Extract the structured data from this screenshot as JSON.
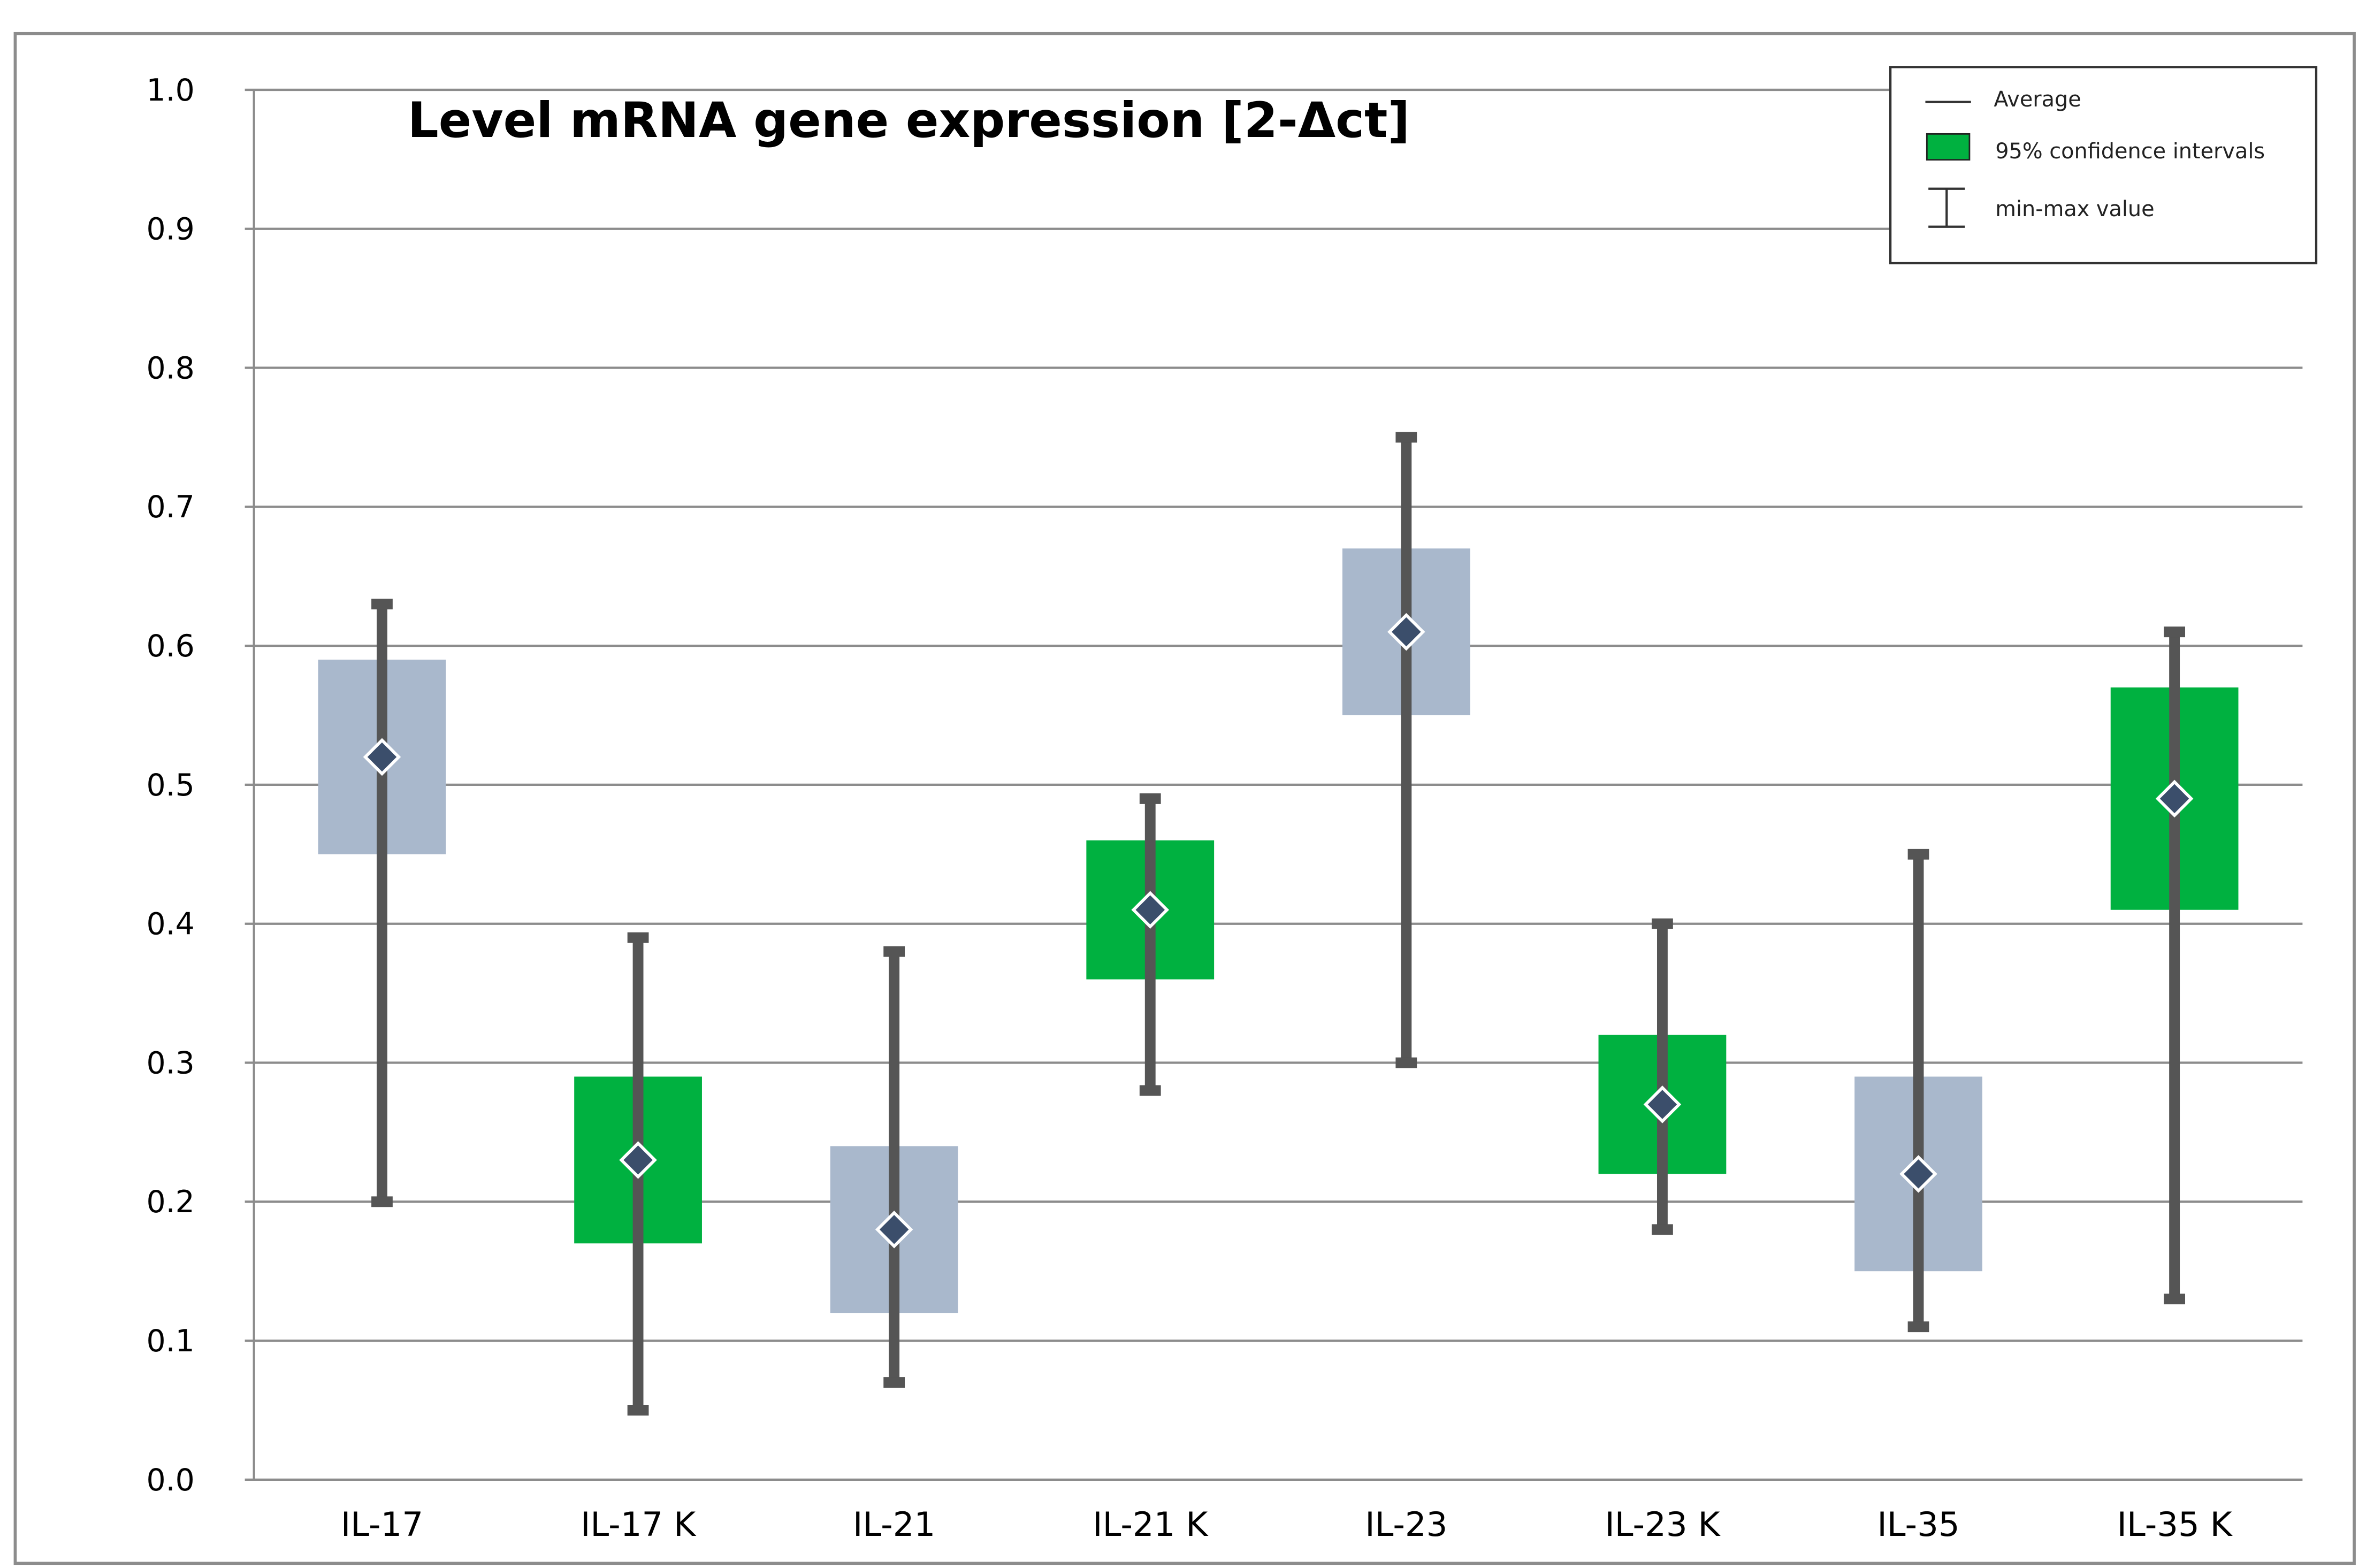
{
  "chart_data": {
    "type": "box",
    "title": "Level mRNA gene expression [2-Δct]",
    "xlabel": "",
    "ylabel": "",
    "ylim": [
      0,
      1.0
    ],
    "yticks": [
      "0.0",
      "0.1",
      "0.2",
      "0.3",
      "0.4",
      "0.5",
      "0.6",
      "0.7",
      "0.8",
      "0.9",
      "1.0"
    ],
    "grid": true,
    "legend_position": "top-right",
    "legend": {
      "average": "Average",
      "ci": "95% confidence intervals",
      "minmax": "min-max value"
    },
    "colors": {
      "gray_box": "#a9b8cc",
      "green_box": "#00b140",
      "whisker": "#555555",
      "marker": "#3b4e6b"
    },
    "categories": [
      "IL-17",
      "IL-17 K",
      "IL-21",
      "IL-21 K",
      "IL-23",
      "IL-23 K",
      "IL-35",
      "IL-35 K"
    ],
    "series": [
      {
        "category": "IL-17",
        "average": 0.52,
        "ci_low": 0.45,
        "ci_high": 0.59,
        "min": 0.2,
        "max": 0.63,
        "color": "gray_box"
      },
      {
        "category": "IL-17 K",
        "average": 0.23,
        "ci_low": 0.17,
        "ci_high": 0.29,
        "min": 0.05,
        "max": 0.39,
        "color": "green_box"
      },
      {
        "category": "IL-21",
        "average": 0.18,
        "ci_low": 0.12,
        "ci_high": 0.24,
        "min": 0.07,
        "max": 0.38,
        "color": "gray_box"
      },
      {
        "category": "IL-21 K",
        "average": 0.41,
        "ci_low": 0.36,
        "ci_high": 0.46,
        "min": 0.28,
        "max": 0.49,
        "color": "green_box"
      },
      {
        "category": "IL-23",
        "average": 0.61,
        "ci_low": 0.55,
        "ci_high": 0.67,
        "min": 0.3,
        "max": 0.75,
        "color": "gray_box"
      },
      {
        "category": "IL-23 K",
        "average": 0.27,
        "ci_low": 0.22,
        "ci_high": 0.32,
        "min": 0.18,
        "max": 0.4,
        "color": "green_box"
      },
      {
        "category": "IL-35",
        "average": 0.22,
        "ci_low": 0.15,
        "ci_high": 0.29,
        "min": 0.11,
        "max": 0.45,
        "color": "gray_box"
      },
      {
        "category": "IL-35 K",
        "average": 0.49,
        "ci_low": 0.41,
        "ci_high": 0.57,
        "min": 0.13,
        "max": 0.61,
        "color": "green_box"
      }
    ]
  }
}
